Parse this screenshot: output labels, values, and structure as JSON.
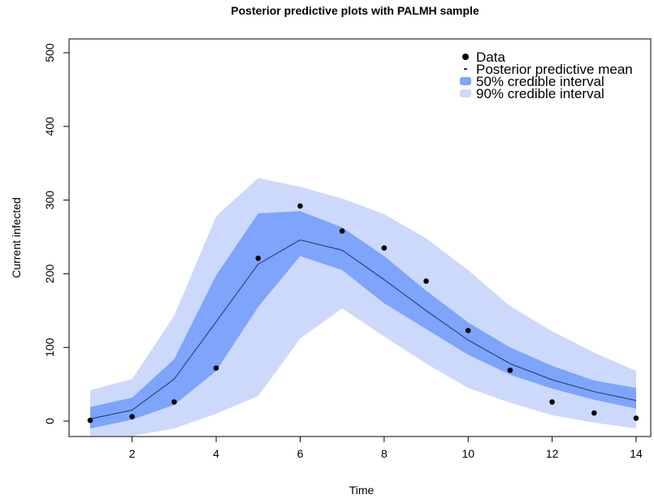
{
  "chart_data": {
    "type": "line",
    "title": "Posterior predictive plots with PALMH sample",
    "xlabel": "Time",
    "ylabel": "Current infected",
    "xlim": [
      1,
      14
    ],
    "ylim": [
      -20,
      525
    ],
    "xticks": [
      2,
      4,
      6,
      8,
      10,
      12,
      14
    ],
    "yticks": [
      0,
      100,
      200,
      300,
      400,
      500
    ],
    "x": [
      1,
      2,
      3,
      4,
      5,
      6,
      7,
      8,
      9,
      10,
      11,
      12,
      13,
      14
    ],
    "series": [
      {
        "name": "Data",
        "kind": "points",
        "values": [
          1,
          6,
          26,
          72,
          221,
          292,
          258,
          235,
          190,
          123,
          69,
          26,
          11,
          4
        ]
      },
      {
        "name": "Posterior predictive mean",
        "kind": "line",
        "values": [
          3,
          15,
          57,
          135,
          213,
          246,
          232,
          192,
          150,
          110,
          78,
          56,
          40,
          28
        ]
      },
      {
        "name": "50% credible interval",
        "kind": "band",
        "lower": [
          -10,
          2,
          22,
          68,
          155,
          224,
          205,
          160,
          125,
          90,
          63,
          44,
          29,
          17
        ],
        "upper": [
          19,
          32,
          84,
          198,
          282,
          285,
          263,
          224,
          177,
          134,
          100,
          75,
          55,
          45
        ]
      },
      {
        "name": "90% credible interval",
        "kind": "band",
        "lower": [
          -20,
          -20,
          -10,
          10,
          34,
          112,
          153,
          115,
          78,
          45,
          25,
          8,
          -2,
          -10
        ],
        "upper": [
          42,
          57,
          143,
          278,
          330,
          318,
          302,
          281,
          248,
          205,
          156,
          122,
          93,
          68
        ]
      }
    ],
    "legend_position": "top-right",
    "grid": false
  },
  "colors": {
    "ci90": "#ccd9fb",
    "ci50": "#7ea4fb",
    "mean": "#213466",
    "points": "#000000",
    "axis": "#000000"
  },
  "legend": [
    {
      "label": "Data",
      "symbol": "point"
    },
    {
      "label": "Posterior predictive mean",
      "symbol": "dash"
    },
    {
      "label": "50% credible interval",
      "symbol": "ci50"
    },
    {
      "label": "90% credible interval",
      "symbol": "ci90"
    }
  ]
}
